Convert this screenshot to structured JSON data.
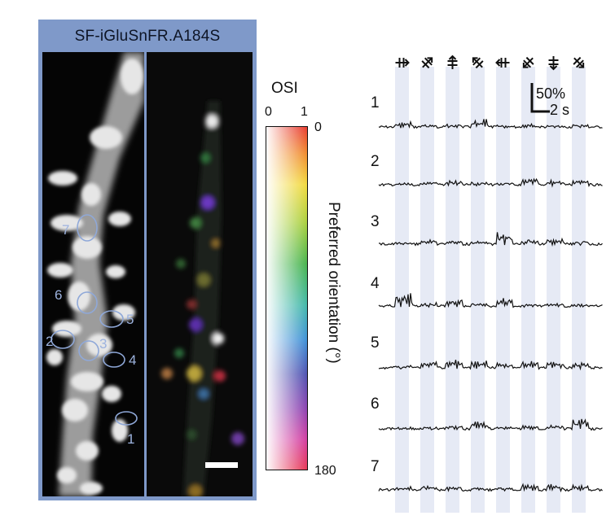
{
  "panel_title": "SF-iGluSnFR.A184S",
  "roi_labels": [
    "1",
    "2",
    "3",
    "4",
    "5",
    "6",
    "7"
  ],
  "colorbar": {
    "osi_label": "OSI",
    "osi_ticks": [
      "0",
      "1"
    ],
    "orientation_label": "Preferred orientation (°)",
    "orientation_ticks": [
      "0",
      "180"
    ]
  },
  "scale_bar": {
    "amplitude": "50%",
    "time": "2 s"
  },
  "trace_labels": [
    "1",
    "2",
    "3",
    "4",
    "5",
    "6",
    "7"
  ],
  "stimulus_angles_deg": [
    0,
    45,
    90,
    135,
    180,
    225,
    270,
    315
  ],
  "colors": {
    "panel_background": "#7f99c9",
    "roi_outline": "#8fa8d8",
    "stimulus_band": "#e6eaf5",
    "trace": "#111111"
  }
}
